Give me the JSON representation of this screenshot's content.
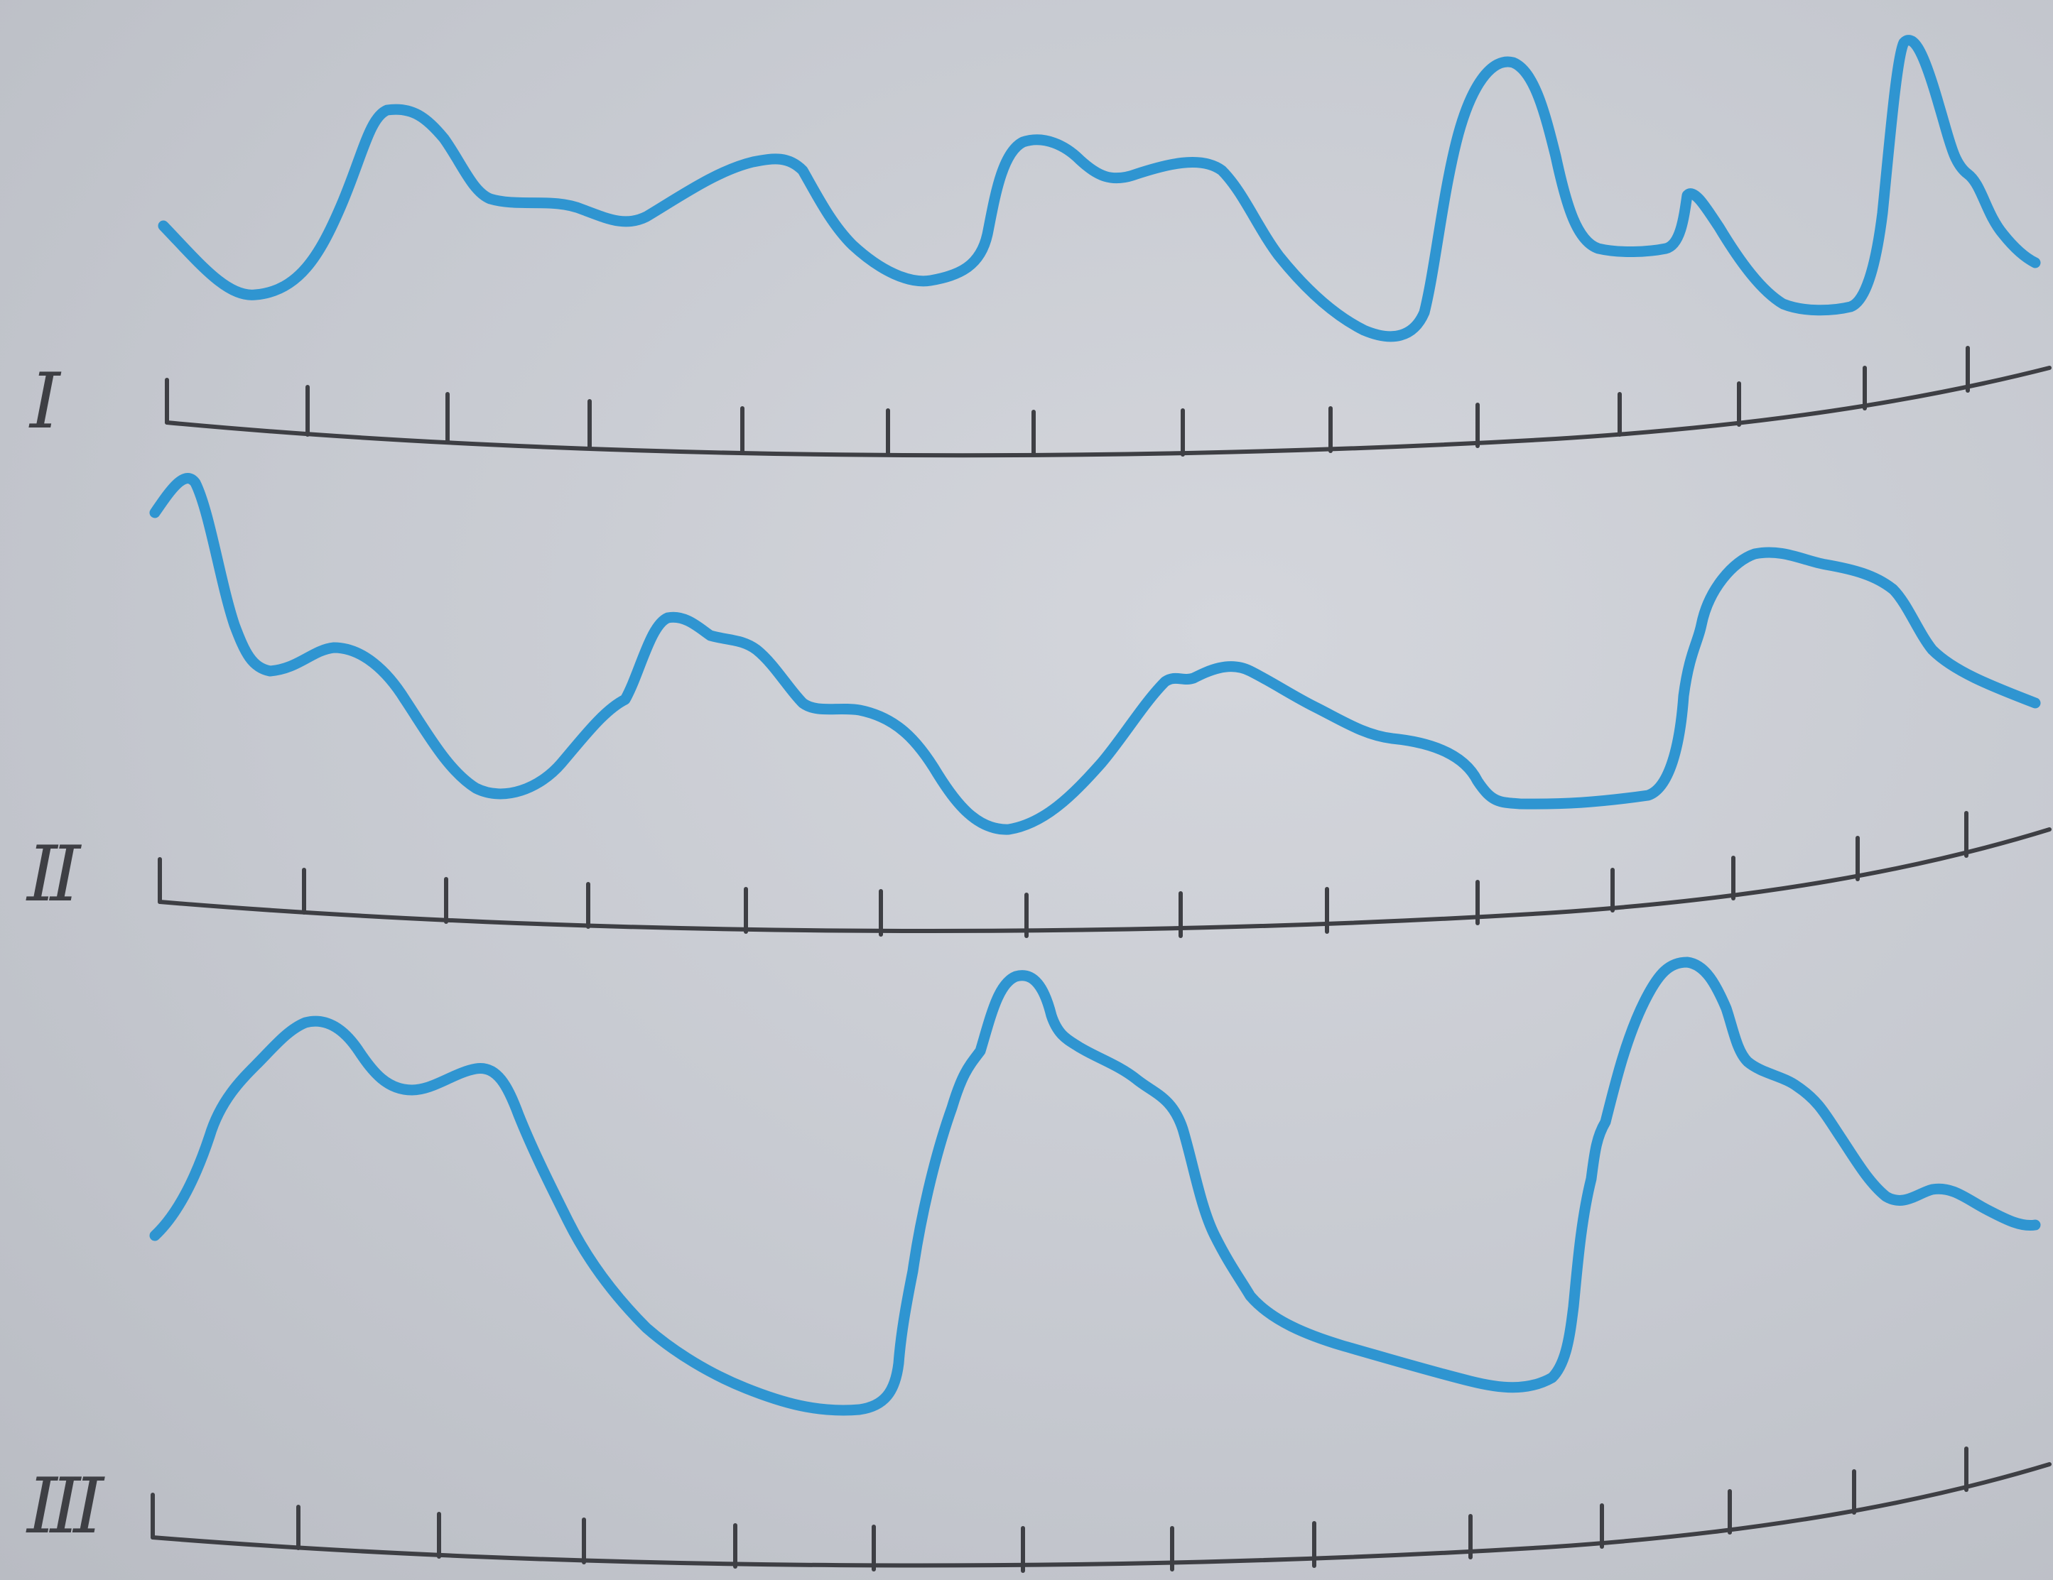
{
  "figure": {
    "trace_color": "#2f95d1",
    "axis_color": "#3e3f44",
    "traces": [
      {
        "label": "I"
      },
      {
        "label": "II"
      },
      {
        "label": "III"
      }
    ]
  }
}
